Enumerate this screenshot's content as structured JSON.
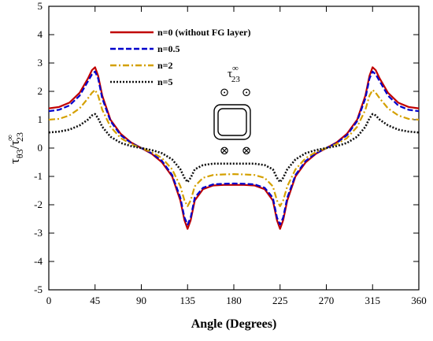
{
  "chart_data": {
    "type": "line",
    "xlabel": "Angle (Degrees)",
    "ylabel_main": "τ",
    "ylabel_sub": "θ3",
    "ylabel_slash": "/",
    "ylabel_denom_main": "τ",
    "ylabel_denom_sub": "23",
    "ylabel_denom_sup": "∞",
    "xlim": [
      0,
      360
    ],
    "ylim": [
      -5,
      5
    ],
    "xticks": [
      0,
      45,
      90,
      135,
      180,
      225,
      270,
      315,
      360
    ],
    "yticks": [
      -5,
      -4,
      -3,
      -2,
      -1,
      0,
      1,
      2,
      3,
      4,
      5
    ],
    "legend_position": "top-left",
    "inset_label_main": "τ",
    "inset_label_sub": "23",
    "inset_label_sup": "∞",
    "inset_top_symbols": [
      "⊙",
      "⊙"
    ],
    "inset_bottom_symbols": [
      "⊗",
      "⊗"
    ],
    "x": [
      0,
      10,
      20,
      30,
      38,
      42,
      45,
      48,
      52,
      60,
      70,
      80,
      90,
      100,
      110,
      120,
      128,
      132,
      135,
      138,
      142,
      150,
      160,
      170,
      180,
      190,
      200,
      210,
      218,
      222,
      225,
      228,
      232,
      240,
      250,
      260,
      270,
      280,
      290,
      300,
      308,
      312,
      315,
      318,
      322,
      330,
      340,
      350,
      360
    ],
    "series": [
      {
        "name": "n=0 (without FG layer)",
        "color": "#c00000",
        "dash": "solid",
        "values": [
          1.4,
          1.45,
          1.6,
          1.95,
          2.45,
          2.75,
          2.85,
          2.55,
          1.85,
          1.0,
          0.5,
          0.2,
          0.0,
          -0.2,
          -0.5,
          -1.0,
          -1.85,
          -2.55,
          -2.85,
          -2.55,
          -1.85,
          -1.45,
          -1.32,
          -1.3,
          -1.3,
          -1.3,
          -1.32,
          -1.45,
          -1.85,
          -2.55,
          -2.85,
          -2.55,
          -1.85,
          -1.0,
          -0.5,
          -0.2,
          0.0,
          0.2,
          0.5,
          1.0,
          1.85,
          2.55,
          2.85,
          2.75,
          2.45,
          1.95,
          1.6,
          1.45,
          1.4
        ]
      },
      {
        "name": "n=0.5",
        "color": "#0000cc",
        "dash": "dash",
        "values": [
          1.3,
          1.35,
          1.5,
          1.85,
          2.35,
          2.6,
          2.7,
          2.45,
          1.75,
          0.95,
          0.45,
          0.18,
          0.0,
          -0.18,
          -0.45,
          -0.95,
          -1.75,
          -2.45,
          -2.7,
          -2.45,
          -1.75,
          -1.4,
          -1.28,
          -1.26,
          -1.25,
          -1.26,
          -1.28,
          -1.4,
          -1.75,
          -2.45,
          -2.7,
          -2.45,
          -1.75,
          -0.95,
          -0.45,
          -0.18,
          0.0,
          0.18,
          0.45,
          0.95,
          1.75,
          2.45,
          2.7,
          2.6,
          2.35,
          1.85,
          1.5,
          1.35,
          1.3
        ]
      },
      {
        "name": "n=2",
        "color": "#d4a000",
        "dash": "dashdot",
        "values": [
          1.0,
          1.03,
          1.15,
          1.4,
          1.75,
          1.95,
          2.05,
          1.85,
          1.35,
          0.75,
          0.35,
          0.14,
          0.0,
          -0.14,
          -0.35,
          -0.75,
          -1.35,
          -1.85,
          -2.05,
          -1.85,
          -1.35,
          -1.05,
          -0.95,
          -0.93,
          -0.92,
          -0.93,
          -0.95,
          -1.05,
          -1.35,
          -1.85,
          -2.05,
          -1.85,
          -1.35,
          -0.75,
          -0.35,
          -0.14,
          0.0,
          0.14,
          0.35,
          0.75,
          1.35,
          1.85,
          2.05,
          1.95,
          1.75,
          1.4,
          1.15,
          1.03,
          1.0
        ]
      },
      {
        "name": "n=5",
        "color": "#111111",
        "dash": "dot",
        "values": [
          0.55,
          0.58,
          0.65,
          0.8,
          1.0,
          1.15,
          1.2,
          1.05,
          0.75,
          0.4,
          0.18,
          0.07,
          0.0,
          -0.07,
          -0.18,
          -0.4,
          -0.75,
          -1.05,
          -1.2,
          -1.05,
          -0.75,
          -0.6,
          -0.55,
          -0.55,
          -0.55,
          -0.55,
          -0.55,
          -0.6,
          -0.75,
          -1.05,
          -1.2,
          -1.05,
          -0.75,
          -0.4,
          -0.18,
          -0.07,
          0.0,
          0.07,
          0.18,
          0.4,
          0.75,
          1.05,
          1.2,
          1.15,
          1.0,
          0.8,
          0.65,
          0.58,
          0.55
        ]
      }
    ]
  }
}
